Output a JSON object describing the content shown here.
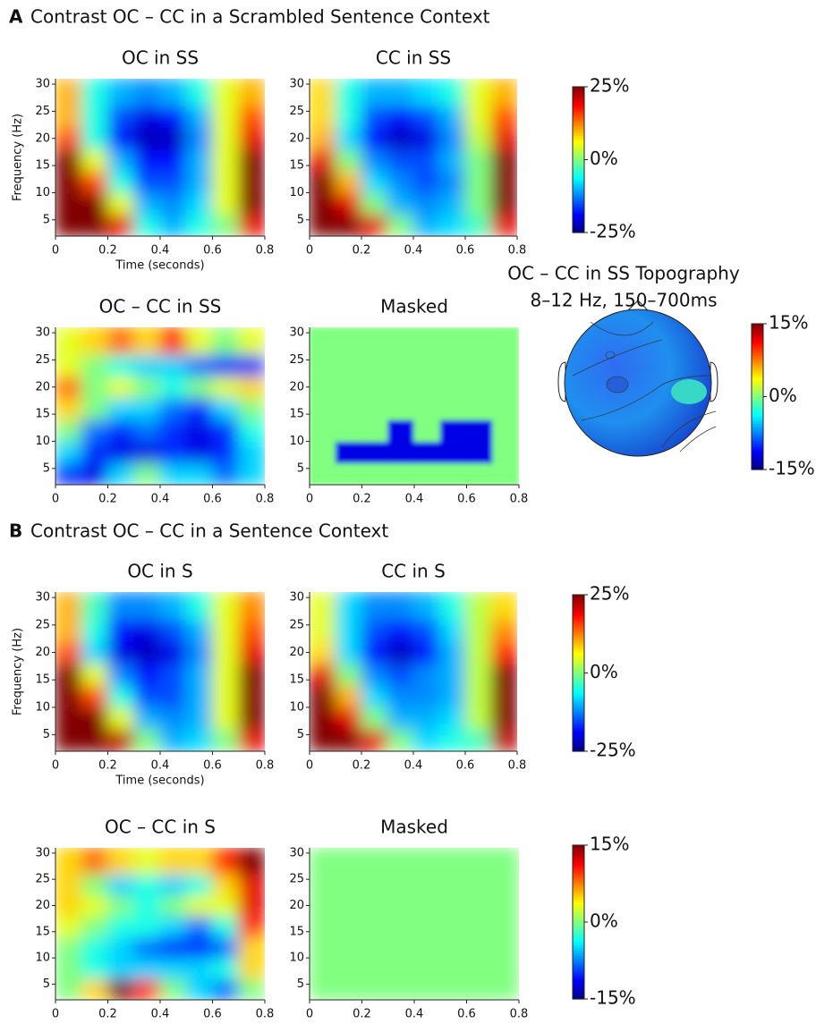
{
  "headings": [
    {
      "letter": "A",
      "text": "Contrast OC – CC in a Scrambled Sentence Context"
    },
    {
      "letter": "B",
      "text": "Contrast OC – CC in a Sentence Context"
    }
  ],
  "chart_data": [
    {
      "type": "heatmap",
      "title": "OC in SS",
      "xlabel": "Time (seconds)",
      "ylabel": "Frequency (Hz)",
      "x": [
        0,
        0.1,
        0.2,
        0.3,
        0.4,
        0.5,
        0.6,
        0.7,
        0.8
      ],
      "y": [
        2,
        6,
        10,
        14,
        18,
        22,
        26,
        31
      ],
      "z": [
        [
          25,
          25,
          20,
          -5,
          -10,
          -5,
          0,
          20
        ],
        [
          25,
          25,
          5,
          -10,
          -12,
          -8,
          5,
          25
        ],
        [
          25,
          15,
          -5,
          -15,
          -15,
          -10,
          5,
          25
        ],
        [
          25,
          5,
          -10,
          -18,
          -18,
          -10,
          5,
          25
        ],
        [
          15,
          -5,
          -18,
          -22,
          -22,
          -12,
          5,
          20
        ],
        [
          10,
          -5,
          -15,
          -20,
          -18,
          -10,
          5,
          15
        ],
        [
          10,
          -5,
          -10,
          -12,
          -10,
          -5,
          5,
          10
        ]
      ],
      "zlim": [
        -25,
        25
      ],
      "xlim": [
        0,
        0.8
      ],
      "ylim": [
        2,
        31
      ],
      "xticks": [
        0,
        0.2,
        0.4,
        0.6,
        0.8
      ],
      "yticks": [
        5,
        10,
        15,
        20,
        25,
        30
      ]
    },
    {
      "type": "heatmap",
      "title": "CC in SS",
      "x": [
        0,
        0.1,
        0.2,
        0.3,
        0.4,
        0.5,
        0.6,
        0.7,
        0.8
      ],
      "y": [
        2,
        6,
        10,
        14,
        18,
        22,
        26,
        31
      ],
      "z": [
        [
          25,
          25,
          20,
          0,
          -10,
          -8,
          -3,
          20
        ],
        [
          25,
          20,
          0,
          -10,
          -12,
          -10,
          0,
          25
        ],
        [
          25,
          10,
          -8,
          -12,
          -15,
          -12,
          0,
          25
        ],
        [
          20,
          0,
          -12,
          -15,
          -15,
          -10,
          0,
          25
        ],
        [
          10,
          -8,
          -18,
          -22,
          -20,
          -12,
          3,
          20
        ],
        [
          8,
          -5,
          -15,
          -18,
          -15,
          -10,
          5,
          15
        ],
        [
          8,
          -5,
          -10,
          -10,
          -8,
          -5,
          5,
          10
        ]
      ],
      "zlim": [
        -25,
        25
      ],
      "xlim": [
        0,
        0.8
      ],
      "ylim": [
        2,
        31
      ],
      "xticks": [
        0,
        0.2,
        0.4,
        0.6,
        0.8
      ],
      "yticks": [
        5,
        10,
        15,
        20,
        25,
        30
      ]
    },
    {
      "type": "colorbar",
      "ylim": [
        -25,
        25
      ],
      "yticks": [
        {
          "value": 25,
          "label": "25%"
        },
        {
          "value": 0,
          "label": "0%"
        },
        {
          "value": -25,
          "label": "-25%"
        }
      ]
    },
    {
      "type": "heatmap",
      "title": "OC – CC in SS",
      "x": [
        0,
        0.1,
        0.2,
        0.3,
        0.4,
        0.5,
        0.6,
        0.7,
        0.8
      ],
      "y": [
        2,
        6,
        10,
        14,
        18,
        22,
        26,
        31
      ],
      "z": [
        [
          -10,
          -12,
          -5,
          0,
          -5,
          -5,
          -8,
          -5
        ],
        [
          -5,
          -10,
          -12,
          -12,
          -10,
          -12,
          -10,
          -5
        ],
        [
          0,
          -8,
          -10,
          -8,
          -10,
          -12,
          -10,
          -3
        ],
        [
          5,
          0,
          -5,
          -5,
          -8,
          -10,
          -5,
          0
        ],
        [
          8,
          0,
          3,
          0,
          -3,
          0,
          3,
          5
        ],
        [
          3,
          0,
          -3,
          -5,
          -5,
          -8,
          -10,
          -10
        ],
        [
          3,
          5,
          8,
          5,
          10,
          3,
          0,
          3
        ]
      ],
      "zlim": [
        -15,
        15
      ],
      "xlim": [
        0,
        0.8
      ],
      "ylim": [
        2,
        31
      ],
      "xticks": [
        0,
        0.2,
        0.4,
        0.6,
        0.8
      ],
      "yticks": [
        5,
        10,
        15,
        20,
        25,
        30
      ]
    },
    {
      "type": "heatmap",
      "title": "Masked",
      "x": [
        0,
        0.1,
        0.2,
        0.3,
        0.4,
        0.5,
        0.6,
        0.7,
        0.8
      ],
      "y": [
        2,
        6,
        10,
        14,
        18,
        22,
        26,
        31
      ],
      "z": [
        [
          0,
          0,
          0,
          0,
          0,
          0,
          0,
          0
        ],
        [
          0,
          -12,
          -12,
          -12,
          -12,
          -12,
          -12,
          0
        ],
        [
          0,
          0,
          0,
          -12,
          0,
          -12,
          -12,
          0
        ],
        [
          0,
          0,
          0,
          0,
          0,
          0,
          0,
          0
        ],
        [
          0,
          0,
          0,
          0,
          0,
          0,
          0,
          0
        ],
        [
          0,
          0,
          0,
          0,
          0,
          0,
          0,
          0
        ],
        [
          0,
          0,
          0,
          0,
          0,
          0,
          0,
          0
        ]
      ],
      "zlim": [
        -15,
        15
      ],
      "xlim": [
        0,
        0.8
      ],
      "ylim": [
        2,
        31
      ],
      "xticks": [
        0,
        0.2,
        0.4,
        0.6,
        0.8
      ],
      "yticks": [
        5,
        10,
        15,
        20,
        25,
        30
      ]
    },
    {
      "type": "topography",
      "title": "OC – CC in SS Topography",
      "subtitle": "8–12 Hz, 150–700ms"
    },
    {
      "type": "colorbar",
      "ylim": [
        -15,
        15
      ],
      "yticks": [
        {
          "value": 15,
          "label": "15%"
        },
        {
          "value": 0,
          "label": "0%"
        },
        {
          "value": -15,
          "label": "-15%"
        }
      ]
    },
    {
      "type": "heatmap",
      "title": "OC in S",
      "xlabel": "Time (seconds)",
      "ylabel": "Frequency (Hz)",
      "x": [
        0,
        0.1,
        0.2,
        0.3,
        0.4,
        0.5,
        0.6,
        0.7,
        0.8
      ],
      "y": [
        2,
        6,
        10,
        14,
        18,
        22,
        26,
        31
      ],
      "z": [
        [
          25,
          25,
          22,
          0,
          -10,
          -8,
          0,
          20
        ],
        [
          25,
          25,
          5,
          -10,
          -12,
          -10,
          5,
          25
        ],
        [
          25,
          15,
          -5,
          -15,
          -15,
          -10,
          5,
          25
        ],
        [
          25,
          5,
          -12,
          -18,
          -15,
          -10,
          5,
          25
        ],
        [
          15,
          -8,
          -20,
          -22,
          -20,
          -12,
          5,
          20
        ],
        [
          10,
          -5,
          -18,
          -20,
          -15,
          -10,
          5,
          15
        ],
        [
          10,
          -3,
          -12,
          -12,
          -10,
          -5,
          5,
          12
        ]
      ],
      "zlim": [
        -25,
        25
      ],
      "xlim": [
        0,
        0.8
      ],
      "ylim": [
        2,
        31
      ],
      "xticks": [
        0,
        0.2,
        0.4,
        0.6,
        0.8
      ],
      "yticks": [
        5,
        10,
        15,
        20,
        25,
        30
      ]
    },
    {
      "type": "heatmap",
      "title": "CC in S",
      "x": [
        0,
        0.1,
        0.2,
        0.3,
        0.4,
        0.5,
        0.6,
        0.7,
        0.8
      ],
      "y": [
        2,
        6,
        10,
        14,
        18,
        22,
        26,
        31
      ],
      "z": [
        [
          25,
          25,
          20,
          0,
          -8,
          -5,
          -3,
          22
        ],
        [
          25,
          20,
          0,
          -10,
          -10,
          -8,
          3,
          25
        ],
        [
          25,
          10,
          -8,
          -12,
          -12,
          -10,
          3,
          25
        ],
        [
          20,
          0,
          -12,
          -15,
          -12,
          -10,
          3,
          25
        ],
        [
          8,
          -8,
          -18,
          -22,
          -18,
          -10,
          3,
          18
        ],
        [
          5,
          -8,
          -15,
          -18,
          -15,
          -8,
          3,
          12
        ],
        [
          5,
          -8,
          -12,
          -12,
          -10,
          -5,
          3,
          8
        ]
      ],
      "zlim": [
        -25,
        25
      ],
      "xlim": [
        0,
        0.8
      ],
      "ylim": [
        2,
        31
      ],
      "xticks": [
        0,
        0.2,
        0.4,
        0.6,
        0.8
      ],
      "yticks": [
        5,
        10,
        15,
        20,
        25,
        30
      ]
    },
    {
      "type": "colorbar",
      "ylim": [
        -25,
        25
      ],
      "yticks": [
        {
          "value": 25,
          "label": "25%"
        },
        {
          "value": 0,
          "label": "0%"
        },
        {
          "value": -25,
          "label": "-25%"
        }
      ]
    },
    {
      "type": "heatmap",
      "title": "OC – CC in S",
      "x": [
        0,
        0.1,
        0.2,
        0.3,
        0.4,
        0.5,
        0.6,
        0.7,
        0.8
      ],
      "y": [
        2,
        6,
        10,
        14,
        18,
        22,
        26,
        31
      ],
      "z": [
        [
          0,
          5,
          15,
          10,
          0,
          -5,
          -8,
          0
        ],
        [
          0,
          -3,
          -5,
          -5,
          -5,
          -5,
          -3,
          5
        ],
        [
          0,
          -3,
          -5,
          -8,
          -10,
          -10,
          -8,
          5
        ],
        [
          3,
          0,
          -3,
          -3,
          -5,
          -8,
          -3,
          10
        ],
        [
          5,
          3,
          0,
          -3,
          0,
          3,
          3,
          12
        ],
        [
          5,
          0,
          -5,
          -3,
          -5,
          -3,
          5,
          12
        ],
        [
          5,
          8,
          5,
          3,
          5,
          5,
          10,
          15
        ]
      ],
      "zlim": [
        -15,
        15
      ],
      "xlim": [
        0,
        0.8
      ],
      "ylim": [
        2,
        31
      ],
      "xticks": [
        0,
        0.2,
        0.4,
        0.6,
        0.8
      ],
      "yticks": [
        5,
        10,
        15,
        20,
        25,
        30
      ]
    },
    {
      "type": "heatmap",
      "title": "Masked",
      "x": [
        0,
        0.1,
        0.2,
        0.3,
        0.4,
        0.5,
        0.6,
        0.7,
        0.8
      ],
      "y": [
        2,
        6,
        10,
        14,
        18,
        22,
        26,
        31
      ],
      "z": [
        [
          0,
          0,
          0,
          0,
          0,
          0,
          0,
          0
        ],
        [
          0,
          0,
          0,
          0,
          0,
          0,
          0,
          0
        ],
        [
          0,
          0,
          0,
          0,
          0,
          0,
          0,
          0
        ],
        [
          0,
          0,
          0,
          0,
          0,
          0,
          0,
          0
        ],
        [
          0,
          0,
          0,
          0,
          0,
          0,
          0,
          0
        ],
        [
          0,
          0,
          0,
          0,
          0,
          0,
          0,
          0
        ],
        [
          0,
          0,
          0,
          0,
          0,
          0,
          0,
          0
        ]
      ],
      "zlim": [
        -15,
        15
      ],
      "xlim": [
        0,
        0.8
      ],
      "ylim": [
        2,
        31
      ],
      "xticks": [
        0,
        0.2,
        0.4,
        0.6,
        0.8
      ],
      "yticks": [
        5,
        10,
        15,
        20,
        25,
        30
      ]
    },
    {
      "type": "colorbar",
      "ylim": [
        -15,
        15
      ],
      "yticks": [
        {
          "value": 15,
          "label": "15%"
        },
        {
          "value": 0,
          "label": "0%"
        },
        {
          "value": -15,
          "label": "-15%"
        }
      ]
    }
  ]
}
